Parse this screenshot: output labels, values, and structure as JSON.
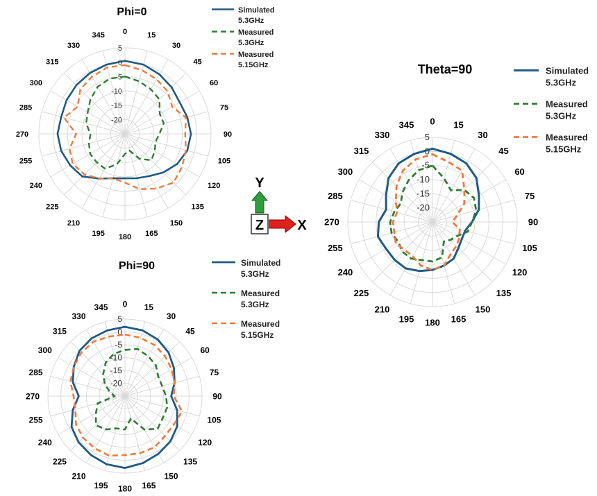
{
  "axes_indicator": {
    "y_label": "Y",
    "z_label": "Z",
    "x_label": "X",
    "y_color": "#2e9e3e",
    "x_color": "#e0201b"
  },
  "colors": {
    "simulated": "#1f5a84",
    "measured_53": "#2e7d32",
    "measured_515": "#ef7b3b",
    "grid": "#d9d9d9"
  },
  "chart_data": [
    {
      "type": "polar",
      "title": "Phi=0",
      "angles_deg": [
        0,
        15,
        30,
        45,
        60,
        75,
        90,
        105,
        120,
        135,
        150,
        165,
        180,
        195,
        210,
        225,
        240,
        255,
        270,
        285,
        300,
        315,
        330,
        345
      ],
      "radial_ticks": [
        "5",
        "0",
        "-5",
        "-10",
        "-15",
        "-20"
      ],
      "rlim": [
        -25,
        5
      ],
      "grid": true,
      "legend_position": "top-right",
      "series": [
        {
          "name": "Simulated 5.3GHz",
          "line": [
            "Simulated",
            "5.3GHz"
          ],
          "style": "solid",
          "values": [
            0.5,
            0,
            -1,
            -2,
            -3,
            -2.5,
            -2,
            -2.5,
            -4,
            -6,
            -8,
            -9,
            -9.5,
            -9,
            -7,
            -4,
            -3,
            -2,
            -1.5,
            -2,
            -1.5,
            -1,
            -0.5,
            0
          ]
        },
        {
          "name": "Measured 5.3GHz",
          "line": [
            "Measured",
            "5.3GHz"
          ],
          "style": "dashed",
          "values": [
            -5,
            -6,
            -7,
            -8,
            -11,
            -11,
            -13,
            -14,
            -13,
            -12,
            -15,
            -19,
            -18,
            -14,
            -11,
            -11,
            -11,
            -12,
            -13,
            -11,
            -10,
            -8,
            -6,
            -5
          ]
        },
        {
          "name": "Measured 5.15GHz",
          "line": [
            "Measured",
            "5.15GHz"
          ],
          "style": "dashed",
          "values": [
            -1,
            -2,
            -3,
            -4,
            -6,
            -3,
            -4,
            -3,
            -2,
            -1,
            -3,
            -5,
            -8,
            -9,
            -7,
            -5,
            -4,
            -5,
            -8,
            -3,
            -6,
            -3,
            -2,
            -1
          ]
        }
      ]
    },
    {
      "type": "polar",
      "title": "Phi=90",
      "angles_deg": [
        0,
        15,
        30,
        45,
        60,
        75,
        90,
        105,
        120,
        135,
        150,
        165,
        180,
        195,
        210,
        225,
        240,
        255,
        270,
        285,
        300,
        315,
        330,
        345
      ],
      "radial_ticks": [
        "5",
        "0",
        "-5",
        "-10",
        "-15",
        "-20"
      ],
      "rlim": [
        -25,
        5
      ],
      "grid": true,
      "legend_position": "top-right",
      "series": [
        {
          "name": "Simulated 5.3GHz",
          "line": [
            "Simulated",
            "5.3GHz"
          ],
          "style": "solid",
          "values": [
            2,
            1.5,
            0.5,
            -1,
            -3,
            -5,
            -7,
            -4,
            -1.5,
            0,
            1,
            2,
            3,
            2.5,
            1.5,
            0.5,
            -1,
            -4,
            -7,
            -4,
            -2,
            0,
            1,
            1.5
          ]
        },
        {
          "name": "Measured 5.3GHz",
          "line": [
            "Measured",
            "5.3GHz"
          ],
          "style": "dashed",
          "values": [
            -7,
            -6,
            -7,
            -8,
            -10,
            -10,
            -9,
            -8,
            -8,
            -7,
            -10,
            -16,
            -12,
            -12,
            -10,
            -9,
            -12,
            -14,
            -21,
            -19,
            -16,
            -13,
            -10,
            -8
          ]
        },
        {
          "name": "Measured 5.15GHz",
          "line": [
            "Measured",
            "5.15GHz"
          ],
          "style": "dashed",
          "values": [
            -1,
            -1.5,
            -2,
            -3,
            -4,
            -5,
            -6,
            -2,
            -3,
            -3,
            -2,
            -2,
            -2,
            -1,
            -1.5,
            -2,
            -3,
            -5,
            -5,
            -3,
            -2,
            -1,
            -0.5,
            -1
          ]
        }
      ]
    },
    {
      "type": "polar",
      "title": "Theta=90",
      "angles_deg": [
        0,
        15,
        30,
        45,
        60,
        75,
        90,
        105,
        120,
        135,
        150,
        165,
        180,
        195,
        210,
        225,
        240,
        255,
        270,
        285,
        300,
        315,
        330,
        345
      ],
      "radial_ticks": [
        "5",
        "0",
        "-5",
        "-10",
        "-15",
        "-20"
      ],
      "rlim": [
        -25,
        5
      ],
      "grid": true,
      "legend_position": "top-right",
      "series": [
        {
          "name": "Simulated 5.3GHz",
          "line": [
            "Simulated",
            "5.3GHz"
          ],
          "style": "solid",
          "values": [
            1,
            0,
            -1,
            -3,
            -6,
            -8,
            -11,
            -13,
            -13,
            -12,
            -10,
            -9,
            -8,
            -7,
            -6,
            -6,
            -6,
            -5,
            -6,
            -8,
            -6,
            -3,
            -1,
            0
          ]
        },
        {
          "name": "Measured 5.3GHz",
          "line": [
            "Measured",
            "5.3GHz"
          ],
          "style": "dashed",
          "values": [
            -5,
            -9,
            -12,
            -9,
            -8,
            -9,
            -11,
            -12,
            -15,
            -16,
            -17,
            -12,
            -11,
            -11,
            -10,
            -10,
            -11,
            -10,
            -10,
            -11,
            -12,
            -10,
            -8,
            -6
          ]
        },
        {
          "name": "Measured 5.15GHz",
          "line": [
            "Measured",
            "5.15GHz"
          ],
          "style": "dashed",
          "values": [
            -1,
            -3,
            -4,
            -9,
            -12,
            -16,
            -18,
            -15,
            -14,
            -13,
            -12,
            -9,
            -8,
            -9,
            -11,
            -11,
            -10,
            -11,
            -11,
            -12,
            -10,
            -7,
            -4,
            -2
          ]
        }
      ]
    }
  ]
}
